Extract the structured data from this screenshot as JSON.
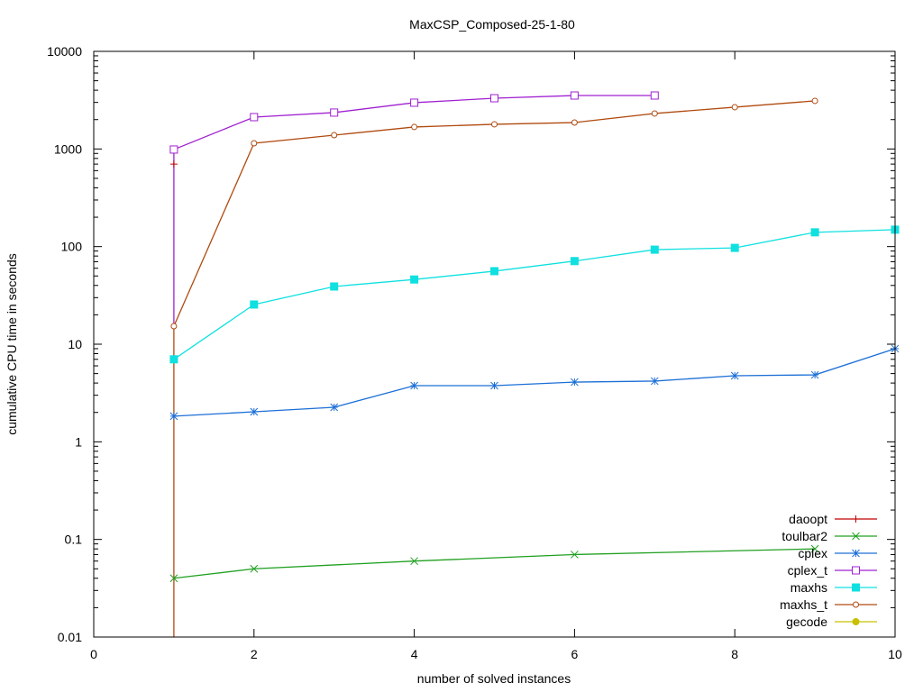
{
  "chart_data": {
    "type": "line",
    "title": "MaxCSP_Composed-25-1-80",
    "xlabel": "number of solved instances",
    "ylabel": "cumulative CPU time in seconds",
    "xlim": [
      0,
      10
    ],
    "ylim": [
      0.01,
      10000
    ],
    "yscale": "log",
    "grid": false,
    "legend_position": "bottom-right",
    "x_ticks": [
      "0",
      "2",
      "4",
      "6",
      "8",
      "10"
    ],
    "y_ticks": [
      "0.01",
      "0.1",
      "1",
      "10",
      "100",
      "1000",
      "10000"
    ],
    "series": [
      {
        "name": "daoopt",
        "color": "#c00000",
        "marker": "plus",
        "x": [
          1
        ],
        "values": [
          700
        ]
      },
      {
        "name": "toulbar2",
        "color": "#20a020",
        "marker": "cross",
        "x": [
          1,
          2,
          4,
          6,
          9
        ],
        "values": [
          0.04,
          0.05,
          0.06,
          0.07,
          0.08
        ]
      },
      {
        "name": "cplex",
        "color": "#1c6fd6",
        "marker": "star",
        "x": [
          1,
          2,
          3,
          4,
          5,
          6,
          7,
          8,
          9,
          10
        ],
        "values": [
          1.83,
          2.03,
          2.26,
          3.76,
          3.76,
          4.09,
          4.19,
          4.75,
          4.85,
          9.0
        ]
      },
      {
        "name": "cplex_t",
        "color": "#a020d0",
        "marker": "open-square",
        "x": [
          1,
          2,
          3,
          4,
          5,
          6,
          7
        ],
        "values": [
          987,
          2120,
          2360,
          2980,
          3310,
          3530,
          3530
        ]
      },
      {
        "name": "maxhs",
        "color": "#10e0e0",
        "marker": "filled-square",
        "x": [
          1,
          2,
          3,
          4,
          5,
          6,
          7,
          8,
          9,
          10
        ],
        "values": [
          7.0,
          25.5,
          39,
          46,
          56,
          71,
          93,
          97,
          140,
          149
        ]
      },
      {
        "name": "maxhs_t",
        "color": "#b04a10",
        "marker": "open-circle",
        "x": [
          1,
          2,
          3,
          4,
          5,
          6,
          7,
          8,
          9
        ],
        "values": [
          15.3,
          1145,
          1385,
          1680,
          1790,
          1865,
          2310,
          2680,
          3110
        ]
      },
      {
        "name": "gecode",
        "color": "#c8c000",
        "marker": "filled-circle",
        "x": [],
        "values": []
      }
    ]
  }
}
